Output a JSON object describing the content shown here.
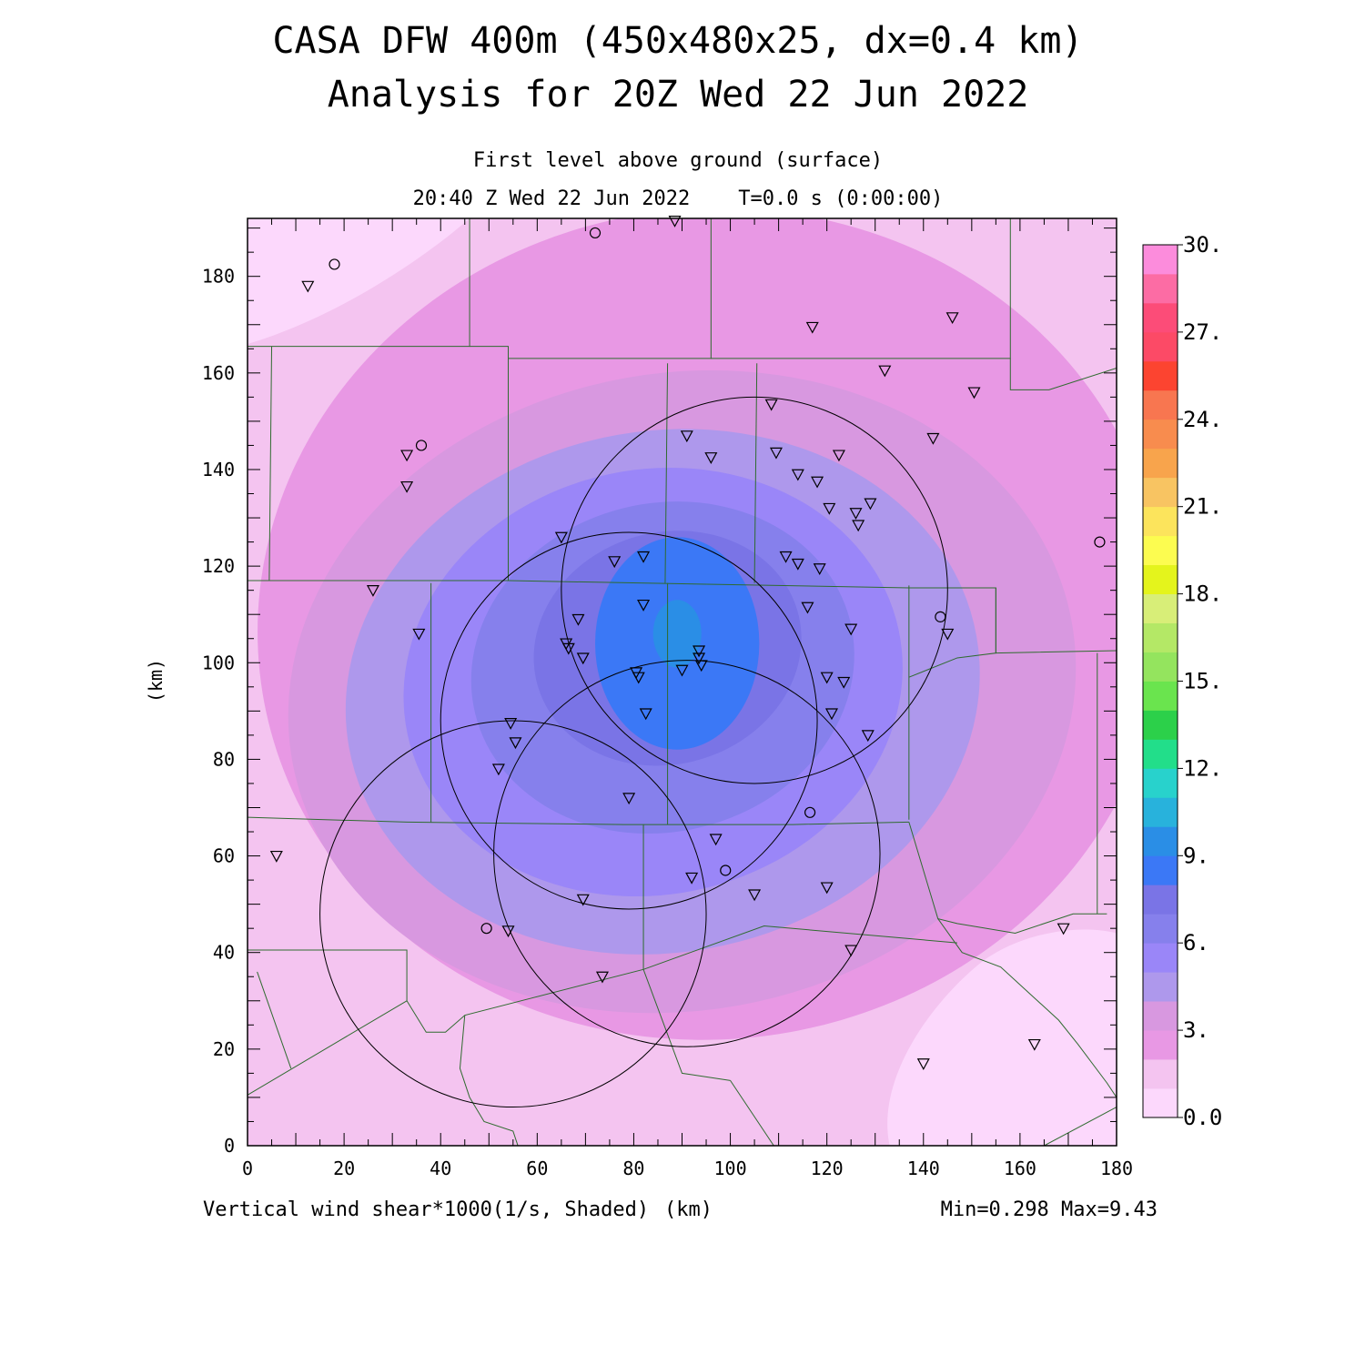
{
  "chart_data": {
    "type": "heatmap",
    "title": "CASA DFW 400m (450x480x25, dx=0.4 km)",
    "subtitle": "Analysis for 20Z Wed 22 Jun 2022",
    "level_label": "First level above ground (surface)",
    "time_label": "20:40 Z Wed 22 Jun 2022    T=0.0 s (0:00:00)",
    "ylabel": "(km)",
    "xlabel": "(km)",
    "variable_label": "Vertical wind shear*1000(1/s, Shaded)",
    "minmax_label": "Min=0.298 Max=9.43",
    "xlim": [
      0,
      180
    ],
    "ylim": [
      0,
      192
    ],
    "x_ticks": [
      "0",
      "20",
      "40",
      "60",
      "80",
      "100",
      "120",
      "140",
      "160",
      "180"
    ],
    "y_ticks": [
      "0",
      "20",
      "40",
      "60",
      "80",
      "100",
      "120",
      "140",
      "160",
      "180"
    ],
    "colorbar": {
      "range": [
        0,
        30
      ],
      "tick_labels": [
        "0.0",
        "3.",
        "6.",
        "9.",
        "12.",
        "15.",
        "18.",
        "21.",
        "24.",
        "27.",
        "30."
      ],
      "colors": [
        "#fcd8fc",
        "#f4c4f0",
        "#e898e4",
        "#d898e0",
        "#ae98ec",
        "#9a86f8",
        "#8680ec",
        "#7a74e6",
        "#3b78f6",
        "#2a8ee6",
        "#28b2dc",
        "#28d2cc",
        "#22de8a",
        "#2cd04a",
        "#6ae44e",
        "#94e45e",
        "#b4e866",
        "#d8ee78",
        "#e4f41c",
        "#fcfc50",
        "#fce45c",
        "#f8c462",
        "#f8a44c",
        "#f88c4e",
        "#f87650",
        "#fc4430",
        "#fc4a66",
        "#fc4c78",
        "#fc6ca4",
        "#fc8cdc"
      ]
    },
    "field_levels": [
      {
        "value": 0.75,
        "color": "#fcd8fc"
      },
      {
        "value": 1.5,
        "color": "#f4c4f0"
      },
      {
        "value": 2.5,
        "color": "#e898e4"
      },
      {
        "value": 3.5,
        "color": "#d898e0"
      },
      {
        "value": 4.5,
        "color": "#ae98ec"
      },
      {
        "value": 5.5,
        "color": "#9a86f8"
      },
      {
        "value": 6.5,
        "color": "#8680ec"
      },
      {
        "value": 7.5,
        "color": "#7a74e6"
      },
      {
        "value": 8.5,
        "color": "#3b78f6"
      },
      {
        "value": 9.2,
        "color": "#2a8ee6"
      }
    ],
    "radar_rings_km": [
      {
        "cx": 79,
        "cy": 88,
        "r": 39
      },
      {
        "cx": 105,
        "cy": 115,
        "r": 40
      },
      {
        "cx": 91,
        "cy": 60.5,
        "r": 40
      },
      {
        "cx": 55,
        "cy": 48,
        "r": 40
      }
    ],
    "stations_tri": [
      [
        12.5,
        178
      ],
      [
        33,
        143
      ],
      [
        33,
        136.5
      ],
      [
        26,
        115
      ],
      [
        35.5,
        106
      ],
      [
        6,
        60
      ],
      [
        65,
        126
      ],
      [
        76,
        121
      ],
      [
        82,
        122
      ],
      [
        82,
        112
      ],
      [
        68.5,
        109
      ],
      [
        66,
        104
      ],
      [
        66.5,
        103
      ],
      [
        69.5,
        101
      ],
      [
        80.5,
        98
      ],
      [
        81,
        97
      ],
      [
        82.5,
        89.5
      ],
      [
        90,
        98.5
      ],
      [
        93.5,
        102.5
      ],
      [
        93.5,
        101
      ],
      [
        94,
        99.5
      ],
      [
        91,
        147
      ],
      [
        96,
        142.5
      ],
      [
        108.5,
        153.5
      ],
      [
        109.5,
        143.5
      ],
      [
        114,
        139
      ],
      [
        118,
        137.5
      ],
      [
        122.5,
        143
      ],
      [
        120.5,
        132
      ],
      [
        126,
        131
      ],
      [
        126.5,
        128.5
      ],
      [
        129,
        133
      ],
      [
        111.5,
        122
      ],
      [
        114,
        120.5
      ],
      [
        118.5,
        119.5
      ],
      [
        116,
        111.5
      ],
      [
        125,
        107
      ],
      [
        120,
        97
      ],
      [
        123.5,
        96
      ],
      [
        121,
        89.5
      ],
      [
        128.5,
        85
      ],
      [
        125,
        40.5
      ],
      [
        120,
        53.5
      ],
      [
        105,
        52
      ],
      [
        97,
        63.5
      ],
      [
        92,
        55.5
      ],
      [
        54.5,
        87.5
      ],
      [
        55.5,
        83.5
      ],
      [
        52,
        78
      ],
      [
        79,
        72
      ],
      [
        69.5,
        51
      ],
      [
        54,
        44.5
      ],
      [
        73.5,
        35
      ],
      [
        88.5,
        191.5
      ],
      [
        117,
        169.5
      ],
      [
        132,
        160.5
      ],
      [
        142,
        146.5
      ],
      [
        146,
        171.5
      ],
      [
        150.5,
        156
      ],
      [
        145,
        106
      ],
      [
        140,
        17
      ],
      [
        163,
        21
      ],
      [
        169,
        45
      ]
    ],
    "stations_circ": [
      [
        18,
        182.5
      ],
      [
        36,
        145
      ],
      [
        72,
        189
      ],
      [
        176.5,
        125
      ],
      [
        143.5,
        109.5
      ],
      [
        116.5,
        69
      ],
      [
        99,
        57
      ],
      [
        49.5,
        45
      ]
    ],
    "boundaries_km": [
      [
        [
          0,
          165.5
        ],
        [
          46,
          165.5
        ],
        [
          46,
          180
        ],
        [
          46,
          192
        ]
      ],
      [
        [
          46,
          165.5
        ],
        [
          54,
          165.5
        ],
        [
          54,
          117
        ]
      ],
      [
        [
          54,
          163
        ],
        [
          96,
          163
        ],
        [
          96,
          192
        ]
      ],
      [
        [
          96,
          163
        ],
        [
          158,
          163
        ],
        [
          158,
          192
        ]
      ],
      [
        [
          158,
          163
        ],
        [
          158,
          156.5
        ],
        [
          166,
          156.5
        ],
        [
          180,
          161
        ]
      ],
      [
        [
          5,
          165.5
        ],
        [
          4.5,
          117
        ],
        [
          0,
          117
        ]
      ],
      [
        [
          0,
          117
        ],
        [
          54,
          117
        ],
        [
          137,
          115.5
        ],
        [
          155,
          115.5
        ],
        [
          155,
          102
        ],
        [
          180,
          102.5
        ]
      ],
      [
        [
          155,
          115.5
        ],
        [
          155,
          102
        ],
        [
          147,
          101
        ],
        [
          137,
          97
        ]
      ],
      [
        [
          87,
          162
        ],
        [
          86.5,
          116.5
        ]
      ],
      [
        [
          105.5,
          162
        ],
        [
          105,
          116.5
        ]
      ],
      [
        [
          137,
          116
        ],
        [
          137,
          67.5
        ]
      ],
      [
        [
          0,
          68
        ],
        [
          33,
          67
        ],
        [
          78,
          66.5
        ],
        [
          87,
          66.5
        ],
        [
          113,
          66.5
        ],
        [
          137,
          67
        ]
      ],
      [
        [
          38,
          116.5
        ],
        [
          38,
          67
        ]
      ],
      [
        [
          87,
          116.5
        ],
        [
          87,
          66.5
        ]
      ],
      [
        [
          82,
          66.5
        ],
        [
          82,
          36.5
        ]
      ],
      [
        [
          137,
          67
        ],
        [
          140,
          57
        ],
        [
          143,
          47
        ],
        [
          147,
          46
        ],
        [
          159,
          44
        ],
        [
          171,
          48
        ],
        [
          178,
          48
        ]
      ],
      [
        [
          176,
          102
        ],
        [
          176,
          48
        ]
      ],
      [
        [
          143,
          47
        ],
        [
          148,
          40
        ],
        [
          156,
          37
        ],
        [
          162,
          31.5
        ],
        [
          168,
          26
        ],
        [
          172,
          21
        ],
        [
          178,
          13
        ],
        [
          180,
          10
        ]
      ],
      [
        [
          0,
          40.5
        ],
        [
          33,
          40.5
        ],
        [
          33,
          30
        ]
      ],
      [
        [
          0,
          10.5
        ],
        [
          33,
          30
        ],
        [
          37,
          23.5
        ],
        [
          41,
          23.5
        ],
        [
          45,
          27
        ],
        [
          82,
          36.5
        ],
        [
          90,
          15
        ],
        [
          100,
          13.5
        ]
      ],
      [
        [
          82,
          36.5
        ],
        [
          107,
          45.5
        ],
        [
          147,
          42
        ]
      ],
      [
        [
          100,
          13.5
        ],
        [
          109,
          0
        ]
      ],
      [
        [
          45,
          27
        ],
        [
          44,
          16
        ],
        [
          46,
          10
        ],
        [
          49,
          5
        ],
        [
          55,
          3
        ],
        [
          56,
          0
        ]
      ],
      [
        [
          2,
          36
        ],
        [
          9,
          16
        ]
      ],
      [
        [
          180,
          8
        ],
        [
          165,
          0
        ]
      ]
    ]
  }
}
